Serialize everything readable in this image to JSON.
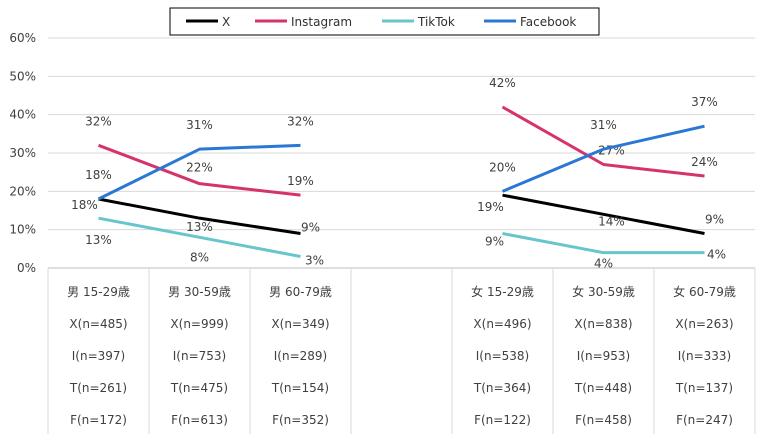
{
  "chart_data": {
    "type": "line",
    "title": "",
    "xlabel": "",
    "ylabel": "",
    "ylim": [
      0,
      60
    ],
    "yticks": [
      "0%",
      "10%",
      "20%",
      "30%",
      "40%",
      "50%",
      "60%"
    ],
    "grid": true,
    "legend_position": "top-center",
    "groups": [
      {
        "name": "男",
        "categories": [
          "男 15-29歳",
          "男 30-59歳",
          "男 60-79歳"
        ]
      },
      {
        "name": "女",
        "categories": [
          "女 15-29歳",
          "女 30-59歳",
          "女 60-79歳"
        ]
      }
    ],
    "series": [
      {
        "name": "X",
        "color": "#000000",
        "values": [
          [
            18,
            13,
            9
          ],
          [
            19,
            14,
            9
          ]
        ],
        "labels": [
          [
            "18%",
            "13%",
            "9%"
          ],
          [
            "19%",
            "14%",
            "9%"
          ]
        ]
      },
      {
        "name": "Instagram",
        "color": "#d6336c",
        "values": [
          [
            32,
            22,
            19
          ],
          [
            42,
            27,
            24
          ]
        ],
        "labels": [
          [
            "32%",
            "22%",
            "19%"
          ],
          [
            "42%",
            "27%",
            "24%"
          ]
        ]
      },
      {
        "name": "TikTok",
        "color": "#66c6cc",
        "values": [
          [
            13,
            8,
            3
          ],
          [
            9,
            4,
            4
          ]
        ],
        "labels": [
          [
            "13%",
            "8%",
            "3%"
          ],
          [
            "9%",
            "4%",
            "4%"
          ]
        ]
      },
      {
        "name": "Facebook",
        "color": "#2a78d4",
        "values": [
          [
            18,
            31,
            32
          ],
          [
            20,
            31,
            37
          ]
        ],
        "labels": [
          [
            "18%",
            "31%",
            "32%"
          ],
          [
            "20%",
            "31%",
            "37%"
          ]
        ]
      }
    ],
    "table_rows": [
      [
        "X(n=485)",
        "X(n=999)",
        "X(n=349)",
        "X(n=496)",
        "X(n=838)",
        "X(n=263)"
      ],
      [
        "I(n=397)",
        "I(n=753)",
        "I(n=289)",
        "I(n=538)",
        "I(n=953)",
        "I(n=333)"
      ],
      [
        "T(n=261)",
        "T(n=475)",
        "T(n=154)",
        "T(n=364)",
        "T(n=448)",
        "T(n=137)"
      ],
      [
        "F(n=172)",
        "F(n=613)",
        "F(n=352)",
        "F(n=122)",
        "F(n=458)",
        "F(n=247)"
      ]
    ]
  }
}
